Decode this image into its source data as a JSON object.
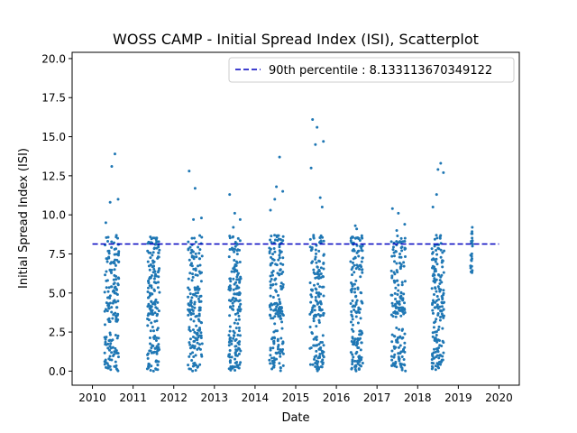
{
  "chart_data": {
    "type": "scatter",
    "title": "WOSS CAMP - Initial Spread Index (ISI), Scatterplot",
    "xlabel": "Date",
    "ylabel": "Initial Spread Index (ISI)",
    "xlim": [
      2009.5,
      2020.5
    ],
    "ylim": [
      -0.9,
      20.4
    ],
    "xticks": [
      "2010",
      "2011",
      "2012",
      "2013",
      "2014",
      "2015",
      "2016",
      "2017",
      "2018",
      "2019",
      "2020"
    ],
    "yticks": [
      "0.0",
      "2.5",
      "5.0",
      "7.5",
      "10.0",
      "12.5",
      "15.0",
      "17.5",
      "20.0"
    ],
    "legend_position": "top-right",
    "colors": {
      "points": "#1f77b4",
      "percentile_line": "#0000bf"
    },
    "series": [
      {
        "type": "scatter",
        "seasons": [
          {
            "start": 2010.3,
            "end": 2010.65,
            "max": 13.9,
            "highs": [
              13.1,
              11.0,
              10.8,
              9.5
            ]
          },
          {
            "start": 2011.35,
            "end": 2011.65,
            "max": 8.2,
            "highs": [
              7.6,
              7.3
            ]
          },
          {
            "start": 2012.35,
            "end": 2012.7,
            "max": 12.8,
            "highs": [
              11.7,
              9.8,
              9.7
            ]
          },
          {
            "start": 2013.35,
            "end": 2013.65,
            "max": 11.3,
            "highs": [
              10.1,
              9.7,
              9.2
            ]
          },
          {
            "start": 2014.35,
            "end": 2014.7,
            "max": 13.7,
            "highs": [
              11.8,
              11.5,
              11.0,
              10.3
            ]
          },
          {
            "start": 2015.35,
            "end": 2015.7,
            "max": 16.1,
            "highs": [
              15.6,
              14.7,
              14.5,
              13.0,
              11.1,
              10.5
            ]
          },
          {
            "start": 2016.35,
            "end": 2016.65,
            "max": 9.3,
            "highs": [
              9.1,
              8.5
            ]
          },
          {
            "start": 2017.35,
            "end": 2017.7,
            "max": 10.4,
            "highs": [
              10.1,
              9.4,
              9.0
            ]
          },
          {
            "start": 2018.35,
            "end": 2018.65,
            "max": 13.3,
            "highs": [
              12.9,
              12.7,
              11.3,
              10.5
            ]
          },
          {
            "start": 2019.3,
            "end": 2019.35,
            "max": 9.2,
            "highs": [
              8.8,
              8.0,
              7.1,
              6.6,
              6.3
            ]
          }
        ]
      }
    ],
    "percentile_line": {
      "label": "90th percentile : 8.133113670349122",
      "value": 8.133113670349122,
      "x_range": [
        2010.0,
        2020.0
      ],
      "style": "dashed"
    }
  }
}
